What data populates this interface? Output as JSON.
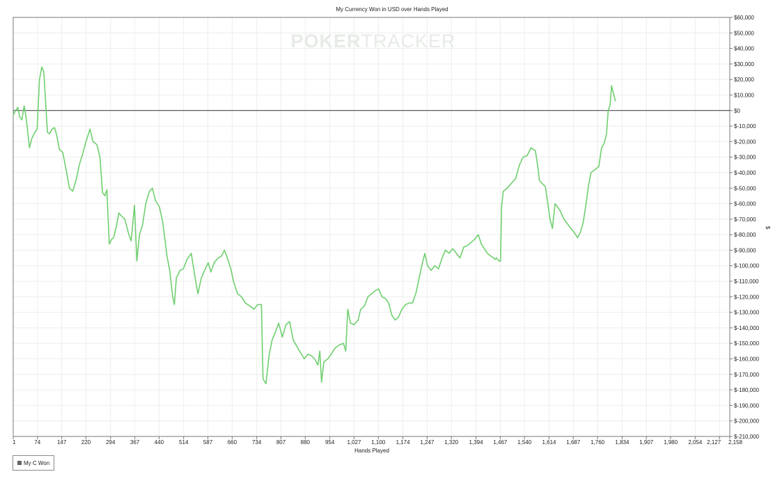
{
  "chart_data": {
    "type": "line",
    "title": "My Currency Won in USD over Hands Played",
    "xlabel": "Hands Played",
    "ylabel": "$",
    "watermark": {
      "left": "POKER",
      "right": "TRACKER"
    },
    "xlim": [
      1,
      2158
    ],
    "ylim": [
      -210000,
      60000
    ],
    "x_ticks": [
      1,
      74,
      147,
      220,
      294,
      367,
      440,
      514,
      587,
      660,
      734,
      807,
      880,
      954,
      1027,
      1100,
      1174,
      1247,
      1320,
      1394,
      1467,
      1540,
      1614,
      1687,
      1760,
      1834,
      1907,
      1980,
      2054,
      2127,
      2158
    ],
    "x_tick_labels": [
      "1",
      "74",
      "147",
      "220",
      "294",
      "367",
      "440",
      "514",
      "587",
      "660",
      "734",
      "807",
      "880",
      "954",
      "1,027",
      "1,100",
      "1,174",
      "1,247",
      "1,320",
      "1,394",
      "1,467",
      "1,540",
      "1,614",
      "1,687",
      "1,760",
      "1,834",
      "1,907",
      "1,980",
      "2,054",
      "2,127",
      "2,158"
    ],
    "y_ticks": [
      60000,
      50000,
      40000,
      30000,
      20000,
      10000,
      0,
      -10000,
      -20000,
      -30000,
      -40000,
      -50000,
      -60000,
      -70000,
      -80000,
      -90000,
      -100000,
      -110000,
      -120000,
      -130000,
      -140000,
      -150000,
      -160000,
      -170000,
      -180000,
      -190000,
      -200000,
      -210000
    ],
    "y_tick_labels": [
      "$60,000",
      "$50,000",
      "$40,000",
      "$30,000",
      "$20,000",
      "$10,000",
      "$0",
      "$-10,000",
      "$-20,000",
      "$-30,000",
      "$-40,000",
      "$-50,000",
      "$-60,000",
      "$-70,000",
      "$-80,000",
      "$-90,000",
      "$-100,000",
      "$-110,000",
      "$-120,000",
      "$-130,000",
      "$-140,000",
      "$-150,000",
      "$-160,000",
      "$-170,000",
      "$-180,000",
      "$-190,000",
      "$-200,000",
      "$-210,000"
    ],
    "grid": true,
    "legend_position": "bottom-left",
    "colors": {
      "line": "#6fcf6f",
      "zero_line": "#333333",
      "grid": "#eeeeee",
      "watermark": "#e6ebe6"
    },
    "series": [
      {
        "name": "My C Won",
        "points": [
          [
            1,
            -3000
          ],
          [
            8,
            0
          ],
          [
            15,
            2000
          ],
          [
            20,
            -4000
          ],
          [
            27,
            -6000
          ],
          [
            34,
            3000
          ],
          [
            40,
            -5000
          ],
          [
            50,
            -24000
          ],
          [
            57,
            -18000
          ],
          [
            66,
            -14000
          ],
          [
            73,
            -12000
          ],
          [
            80,
            20000
          ],
          [
            87,
            28000
          ],
          [
            93,
            25000
          ],
          [
            100,
            0
          ],
          [
            104,
            -14000
          ],
          [
            110,
            -15000
          ],
          [
            118,
            -12000
          ],
          [
            125,
            -11000
          ],
          [
            131,
            -15000
          ],
          [
            140,
            -25000
          ],
          [
            150,
            -27000
          ],
          [
            160,
            -38000
          ],
          [
            170,
            -50000
          ],
          [
            180,
            -52000
          ],
          [
            190,
            -45000
          ],
          [
            200,
            -35000
          ],
          [
            210,
            -28000
          ],
          [
            220,
            -20000
          ],
          [
            232,
            -12000
          ],
          [
            241,
            -20000
          ],
          [
            253,
            -22000
          ],
          [
            262,
            -30000
          ],
          [
            270,
            -53000
          ],
          [
            277,
            -55000
          ],
          [
            283,
            -51000
          ],
          [
            290,
            -86000
          ],
          [
            297,
            -83000
          ],
          [
            303,
            -82000
          ],
          [
            311,
            -75000
          ],
          [
            319,
            -66000
          ],
          [
            327,
            -68000
          ],
          [
            337,
            -70000
          ],
          [
            349,
            -80000
          ],
          [
            356,
            -84000
          ],
          [
            366,
            -61000
          ],
          [
            373,
            -97000
          ],
          [
            381,
            -80000
          ],
          [
            390,
            -74000
          ],
          [
            400,
            -60000
          ],
          [
            411,
            -52000
          ],
          [
            420,
            -50000
          ],
          [
            429,
            -58000
          ],
          [
            441,
            -62000
          ],
          [
            451,
            -72000
          ],
          [
            464,
            -94000
          ],
          [
            472,
            -103000
          ],
          [
            481,
            -120000
          ],
          [
            486,
            -125000
          ],
          [
            492,
            -108000
          ],
          [
            503,
            -103000
          ],
          [
            513,
            -102000
          ],
          [
            524,
            -96000
          ],
          [
            537,
            -92000
          ],
          [
            547,
            -106000
          ],
          [
            557,
            -118000
          ],
          [
            567,
            -108000
          ],
          [
            577,
            -103000
          ],
          [
            588,
            -98000
          ],
          [
            596,
            -104000
          ],
          [
            606,
            -98000
          ],
          [
            618,
            -95000
          ],
          [
            627,
            -94000
          ],
          [
            637,
            -90000
          ],
          [
            647,
            -96000
          ],
          [
            656,
            -102000
          ],
          [
            664,
            -110000
          ],
          [
            676,
            -118000
          ],
          [
            688,
            -120000
          ],
          [
            700,
            -124000
          ],
          [
            713,
            -126000
          ],
          [
            726,
            -128000
          ],
          [
            737,
            -125000
          ],
          [
            748,
            -125000
          ],
          [
            753,
            -173000
          ],
          [
            762,
            -176000
          ],
          [
            771,
            -158000
          ],
          [
            780,
            -148000
          ],
          [
            790,
            -143000
          ],
          [
            800,
            -137000
          ],
          [
            811,
            -146000
          ],
          [
            822,
            -138000
          ],
          [
            833,
            -136000
          ],
          [
            844,
            -148000
          ],
          [
            855,
            -152000
          ],
          [
            866,
            -156000
          ],
          [
            877,
            -160000
          ],
          [
            888,
            -157000
          ],
          [
            899,
            -158000
          ],
          [
            908,
            -160000
          ],
          [
            918,
            -164000
          ],
          [
            924,
            -155000
          ],
          [
            929,
            -175000
          ],
          [
            936,
            -162000
          ],
          [
            948,
            -160000
          ],
          [
            958,
            -157000
          ],
          [
            970,
            -153000
          ],
          [
            983,
            -151000
          ],
          [
            995,
            -150000
          ],
          [
            1002,
            -155000
          ],
          [
            1008,
            -128000
          ],
          [
            1016,
            -137000
          ],
          [
            1027,
            -138000
          ],
          [
            1039,
            -135000
          ],
          [
            1047,
            -128000
          ],
          [
            1058,
            -126000
          ],
          [
            1069,
            -120000
          ],
          [
            1080,
            -118000
          ],
          [
            1091,
            -116000
          ],
          [
            1101,
            -115000
          ],
          [
            1111,
            -120000
          ],
          [
            1121,
            -121000
          ],
          [
            1131,
            -124000
          ],
          [
            1141,
            -132000
          ],
          [
            1151,
            -135000
          ],
          [
            1161,
            -133000
          ],
          [
            1171,
            -128000
          ],
          [
            1182,
            -125000
          ],
          [
            1193,
            -124000
          ],
          [
            1203,
            -124000
          ],
          [
            1214,
            -117000
          ],
          [
            1224,
            -107000
          ],
          [
            1233,
            -98000
          ],
          [
            1240,
            -92000
          ],
          [
            1248,
            -100000
          ],
          [
            1259,
            -103000
          ],
          [
            1270,
            -100000
          ],
          [
            1281,
            -102000
          ],
          [
            1292,
            -95000
          ],
          [
            1302,
            -90000
          ],
          [
            1313,
            -92000
          ],
          [
            1324,
            -89000
          ],
          [
            1335,
            -92000
          ],
          [
            1346,
            -95000
          ],
          [
            1357,
            -88000
          ],
          [
            1368,
            -87000
          ],
          [
            1379,
            -85000
          ],
          [
            1390,
            -83000
          ],
          [
            1401,
            -80000
          ],
          [
            1410,
            -86000
          ],
          [
            1419,
            -89000
          ],
          [
            1428,
            -92000
          ],
          [
            1440,
            -94000
          ],
          [
            1448,
            -95000
          ],
          [
            1451,
            -96000
          ],
          [
            1456,
            -95000
          ],
          [
            1464,
            -97000
          ],
          [
            1468,
            -97000
          ],
          [
            1471,
            -62000
          ],
          [
            1476,
            -52000
          ],
          [
            1488,
            -50000
          ],
          [
            1500,
            -47000
          ],
          [
            1513,
            -44000
          ],
          [
            1525,
            -35000
          ],
          [
            1536,
            -30000
          ],
          [
            1548,
            -29000
          ],
          [
            1560,
            -24000
          ],
          [
            1573,
            -26000
          ],
          [
            1580,
            -36000
          ],
          [
            1585,
            -45000
          ],
          [
            1593,
            -47000
          ],
          [
            1603,
            -49000
          ],
          [
            1617,
            -70000
          ],
          [
            1624,
            -76000
          ],
          [
            1632,
            -60000
          ],
          [
            1646,
            -64000
          ],
          [
            1659,
            -70000
          ],
          [
            1676,
            -75000
          ],
          [
            1688,
            -78000
          ],
          [
            1700,
            -82000
          ],
          [
            1709,
            -78000
          ],
          [
            1717,
            -72000
          ],
          [
            1724,
            -62000
          ],
          [
            1733,
            -48000
          ],
          [
            1740,
            -40000
          ],
          [
            1753,
            -38000
          ],
          [
            1764,
            -36000
          ],
          [
            1772,
            -24000
          ],
          [
            1780,
            -21000
          ],
          [
            1787,
            -15000
          ],
          [
            1792,
            0
          ],
          [
            1798,
            4000
          ],
          [
            1802,
            16000
          ],
          [
            1809,
            10000
          ],
          [
            1814,
            6000
          ]
        ]
      }
    ]
  }
}
